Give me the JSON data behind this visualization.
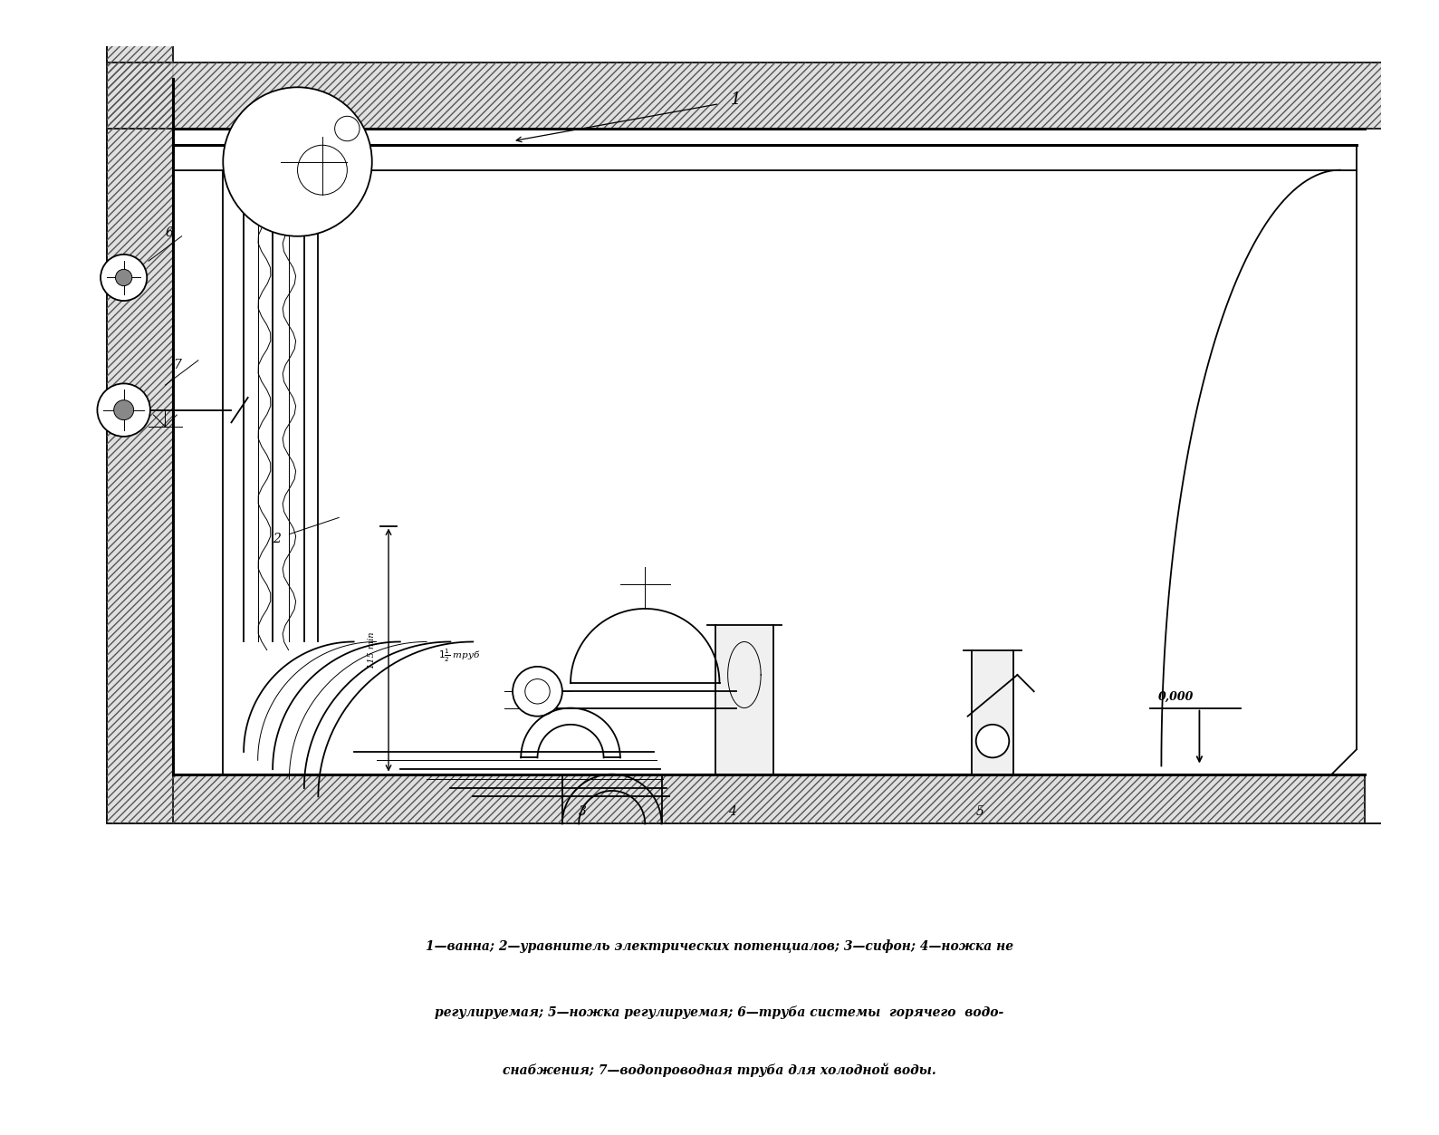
{
  "bg_color": "#ffffff",
  "lc": "#000000",
  "fig_width": 15.89,
  "fig_height": 12.53,
  "caption_lines": [
    "1—ванна; 2—уравнитель электрических потенциалов; 3—сифон; 4—ножка не",
    "регулируемая; 5—ножка регулируемая; 6—труба системы  горячего  водо-",
    "снабжения; 7—водопроводная труба для холодной воды."
  ]
}
